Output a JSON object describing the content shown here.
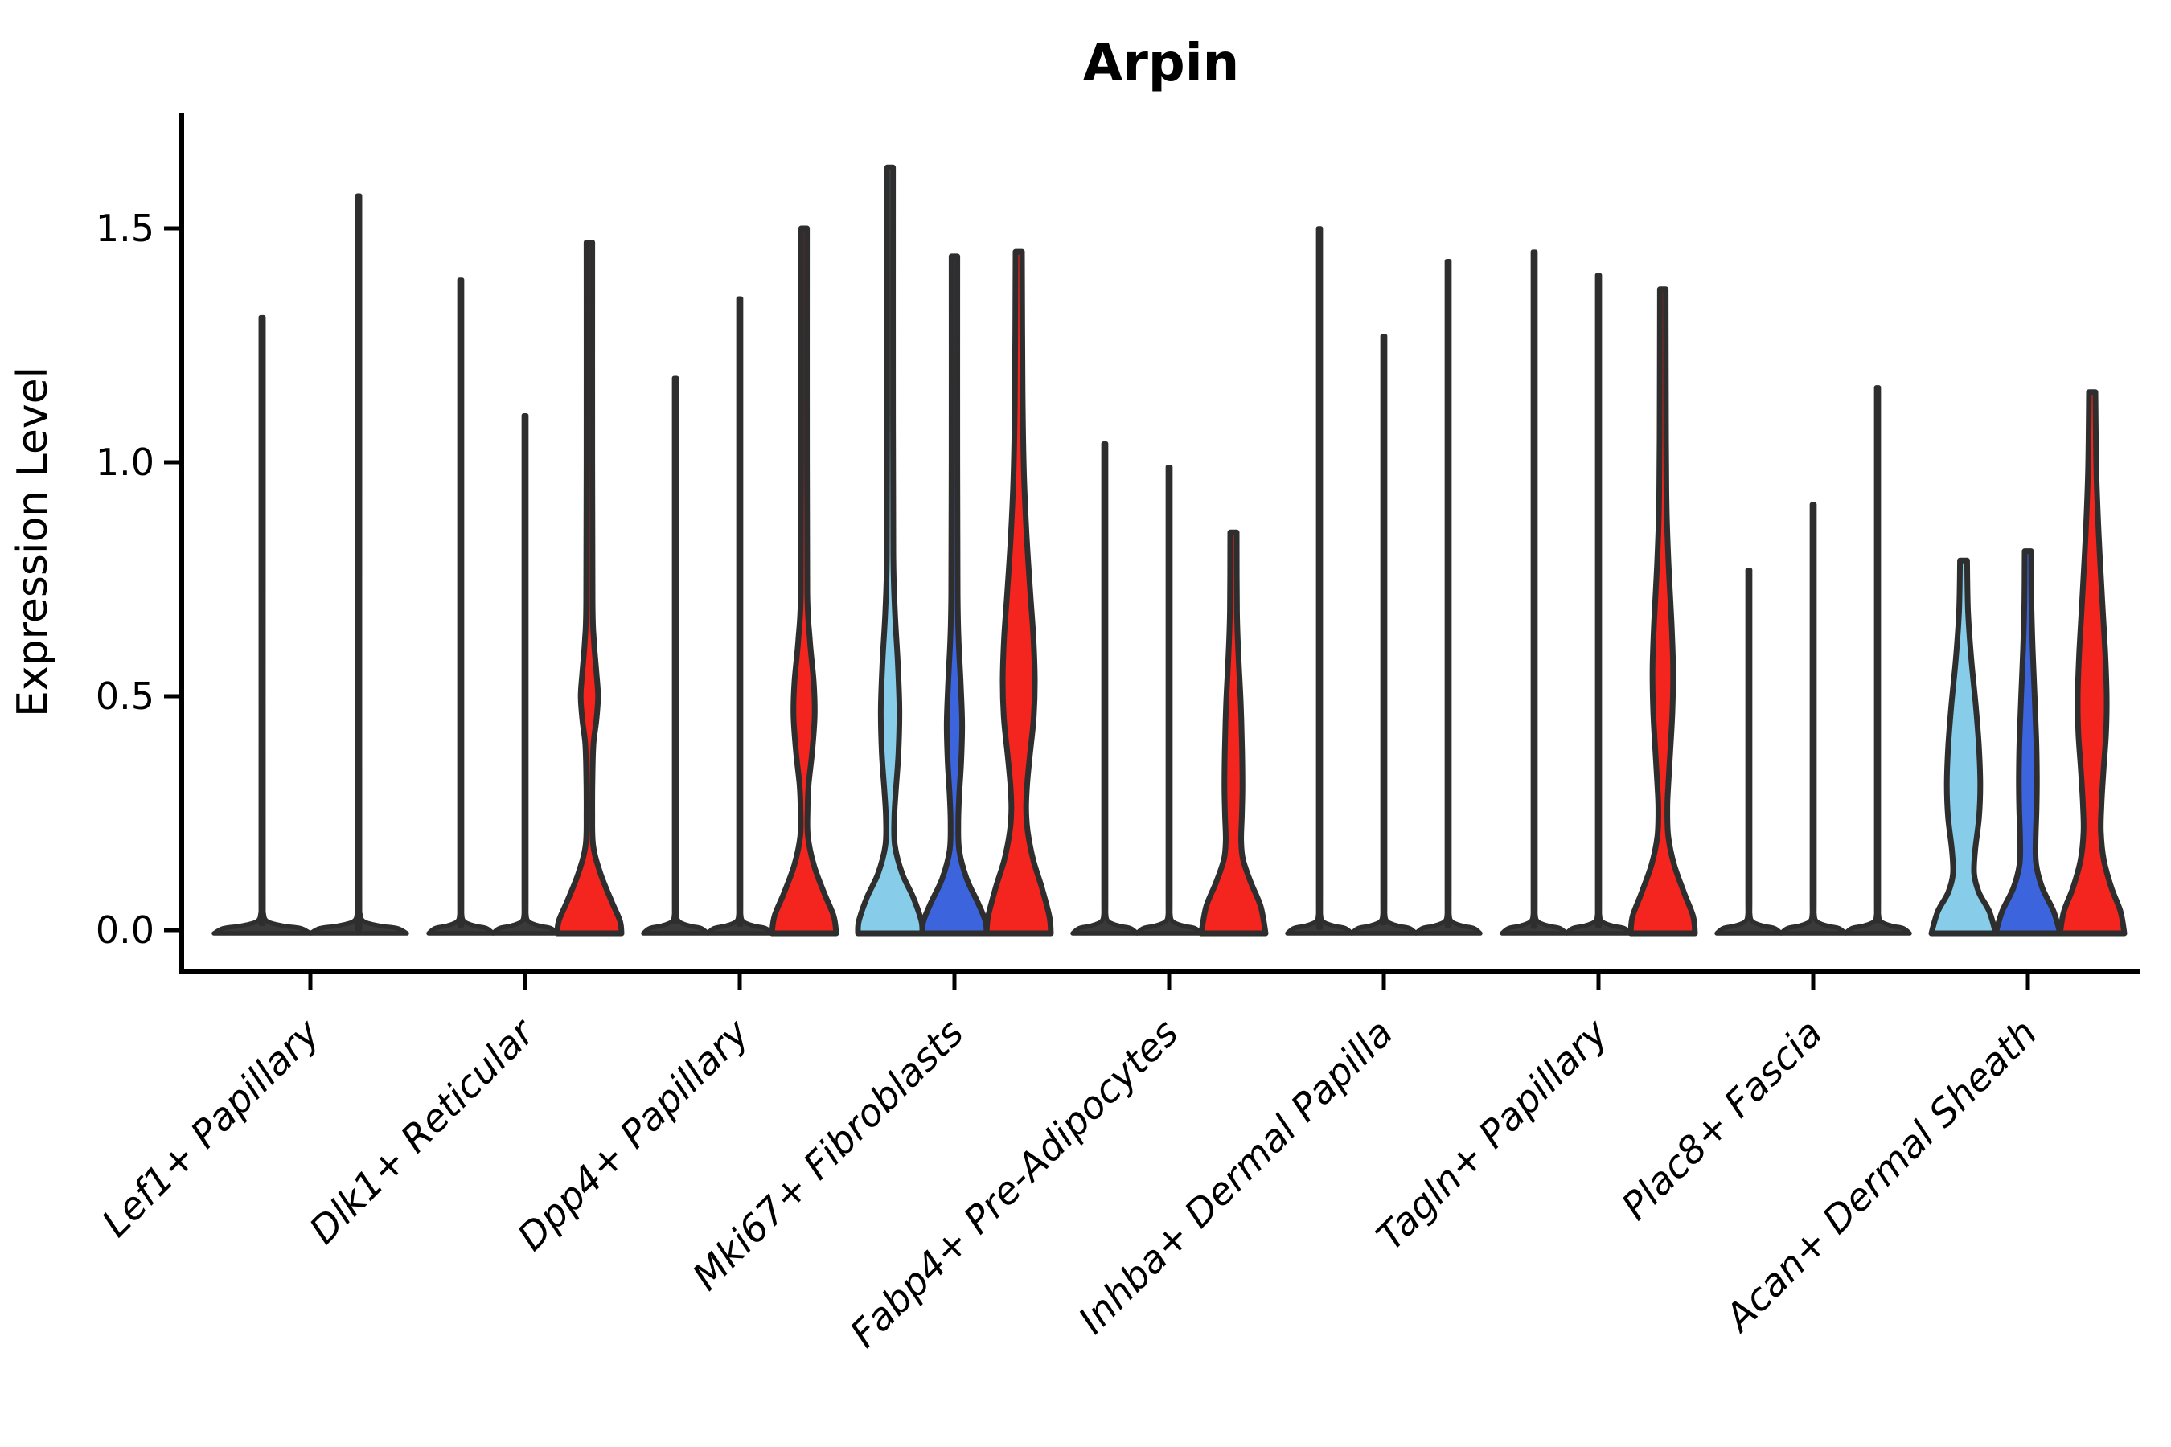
{
  "chart_data": {
    "type": "violin",
    "title": "Arpin",
    "ylabel": "Expression Level",
    "xlabel": "",
    "yticks": [
      "0.0",
      "0.5",
      "1.0",
      "1.5"
    ],
    "ytick_values": [
      0.0,
      0.5,
      1.0,
      1.5
    ],
    "ylim": [
      -0.08,
      1.74
    ],
    "grid": false,
    "legend": "none",
    "colors": {
      "split_lightblue": "#87CDEA",
      "split_darkblue": "#3C64DC",
      "split_red": "#F4251E",
      "line_violin_fill": "#3A3A3A",
      "outline": "#2E2E2E",
      "axis": "#000000"
    },
    "categories": [
      "Lef1+ Papillary",
      "Dlk1+ Reticular",
      "Dpp4+ Papillary",
      "Mki67+ Fibroblasts",
      "Fabp4+ Pre-Adipocytes",
      "Inhba+ Dermal Papilla",
      "Tagln+ Papillary",
      "Plac8+ Fascia",
      "Acan+ Dermal Sheath"
    ],
    "groups": [
      {
        "label": "Lef1+ Papillary",
        "violins": [
          {
            "kind": "line",
            "color": "line",
            "max": 1.31,
            "offset": -60,
            "base_halfwidth": 60
          },
          {
            "kind": "line",
            "color": "line",
            "max": 1.57,
            "offset": 60,
            "base_halfwidth": 60
          }
        ]
      },
      {
        "label": "Dlk1+ Reticular",
        "violins": [
          {
            "kind": "line",
            "color": "line",
            "max": 1.39,
            "offset": -80,
            "base_halfwidth": 40
          },
          {
            "kind": "line",
            "color": "line",
            "max": 1.1,
            "offset": 0,
            "base_halfwidth": 40
          },
          {
            "kind": "shaped",
            "color": "red",
            "max": 1.47,
            "offset": 80,
            "base_halfwidth": 40,
            "profile": [
              [
                1.47,
                0.09
              ],
              [
                1.0,
                0.09
              ],
              [
                0.7,
                0.1
              ],
              [
                0.62,
                0.14
              ],
              [
                0.55,
                0.22
              ],
              [
                0.5,
                0.27
              ],
              [
                0.45,
                0.22
              ],
              [
                0.4,
                0.13
              ],
              [
                0.34,
                0.1
              ],
              [
                0.25,
                0.09
              ],
              [
                0.18,
                0.12
              ],
              [
                0.12,
                0.35
              ],
              [
                0.06,
                0.7
              ],
              [
                0.02,
                0.95
              ],
              [
                0,
                1.0
              ]
            ]
          }
        ]
      },
      {
        "label": "Dpp4+ Papillary",
        "violins": [
          {
            "kind": "line",
            "color": "line",
            "max": 1.18,
            "offset": -80,
            "base_halfwidth": 40
          },
          {
            "kind": "line",
            "color": "line",
            "max": 1.35,
            "offset": 0,
            "base_halfwidth": 40
          },
          {
            "kind": "shaped",
            "color": "red",
            "max": 1.5,
            "offset": 80,
            "base_halfwidth": 40,
            "profile": [
              [
                1.5,
                0.09
              ],
              [
                1.0,
                0.09
              ],
              [
                0.72,
                0.1
              ],
              [
                0.62,
                0.18
              ],
              [
                0.53,
                0.3
              ],
              [
                0.46,
                0.33
              ],
              [
                0.38,
                0.25
              ],
              [
                0.31,
                0.14
              ],
              [
                0.26,
                0.11
              ],
              [
                0.2,
                0.12
              ],
              [
                0.14,
                0.3
              ],
              [
                0.08,
                0.62
              ],
              [
                0.03,
                0.92
              ],
              [
                0,
                1.0
              ]
            ]
          }
        ]
      },
      {
        "label": "Mki67+ Fibroblasts",
        "violins": [
          {
            "kind": "shaped",
            "color": "lightblue",
            "max": 1.63,
            "offset": -80,
            "base_halfwidth": 40,
            "profile": [
              [
                1.63,
                0.09
              ],
              [
                1.1,
                0.09
              ],
              [
                0.8,
                0.1
              ],
              [
                0.68,
                0.15
              ],
              [
                0.57,
                0.24
              ],
              [
                0.47,
                0.29
              ],
              [
                0.38,
                0.26
              ],
              [
                0.3,
                0.18
              ],
              [
                0.24,
                0.13
              ],
              [
                0.18,
                0.15
              ],
              [
                0.12,
                0.38
              ],
              [
                0.07,
                0.72
              ],
              [
                0.02,
                0.97
              ],
              [
                0,
                1.0
              ]
            ]
          },
          {
            "kind": "shaped",
            "color": "darkblue",
            "max": 1.44,
            "offset": 0,
            "base_halfwidth": 40,
            "profile": [
              [
                1.44,
                0.09
              ],
              [
                1.0,
                0.09
              ],
              [
                0.72,
                0.1
              ],
              [
                0.62,
                0.13
              ],
              [
                0.52,
                0.2
              ],
              [
                0.44,
                0.24
              ],
              [
                0.36,
                0.21
              ],
              [
                0.29,
                0.15
              ],
              [
                0.23,
                0.12
              ],
              [
                0.17,
                0.15
              ],
              [
                0.11,
                0.38
              ],
              [
                0.06,
                0.72
              ],
              [
                0.02,
                0.96
              ],
              [
                0,
                1.0
              ]
            ]
          },
          {
            "kind": "shaped",
            "color": "red",
            "max": 1.45,
            "offset": 80,
            "base_halfwidth": 40,
            "profile": [
              [
                1.45,
                0.1
              ],
              [
                1.15,
                0.12
              ],
              [
                0.98,
                0.16
              ],
              [
                0.85,
                0.24
              ],
              [
                0.72,
                0.36
              ],
              [
                0.62,
                0.46
              ],
              [
                0.53,
                0.5
              ],
              [
                0.45,
                0.46
              ],
              [
                0.37,
                0.34
              ],
              [
                0.31,
                0.26
              ],
              [
                0.26,
                0.23
              ],
              [
                0.21,
                0.28
              ],
              [
                0.15,
                0.45
              ],
              [
                0.09,
                0.72
              ],
              [
                0.03,
                0.95
              ],
              [
                0,
                1.0
              ]
            ]
          }
        ]
      },
      {
        "label": "Fabp4+ Pre-Adipocytes",
        "violins": [
          {
            "kind": "line",
            "color": "line",
            "max": 1.04,
            "offset": -80,
            "base_halfwidth": 40
          },
          {
            "kind": "line",
            "color": "line",
            "max": 0.99,
            "offset": 0,
            "base_halfwidth": 40
          },
          {
            "kind": "shaped",
            "color": "red",
            "max": 0.85,
            "offset": 80,
            "base_halfwidth": 40,
            "profile": [
              [
                0.85,
                0.1
              ],
              [
                0.68,
                0.11
              ],
              [
                0.58,
                0.16
              ],
              [
                0.48,
                0.23
              ],
              [
                0.38,
                0.27
              ],
              [
                0.3,
                0.28
              ],
              [
                0.24,
                0.26
              ],
              [
                0.19,
                0.24
              ],
              [
                0.15,
                0.3
              ],
              [
                0.1,
                0.55
              ],
              [
                0.05,
                0.85
              ],
              [
                0,
                1.0
              ]
            ]
          }
        ]
      },
      {
        "label": "Inhba+ Dermal Papilla",
        "violins": [
          {
            "kind": "line",
            "color": "line",
            "max": 1.5,
            "offset": -80,
            "base_halfwidth": 40
          },
          {
            "kind": "line",
            "color": "line",
            "max": 1.27,
            "offset": 0,
            "base_halfwidth": 40
          },
          {
            "kind": "line",
            "color": "line",
            "max": 1.43,
            "offset": 80,
            "base_halfwidth": 40
          }
        ]
      },
      {
        "label": "Tagln+ Papillary",
        "violins": [
          {
            "kind": "line",
            "color": "line",
            "max": 1.45,
            "offset": -80,
            "base_halfwidth": 40
          },
          {
            "kind": "line",
            "color": "line",
            "max": 1.4,
            "offset": 0,
            "base_halfwidth": 40
          },
          {
            "kind": "shaped",
            "color": "red",
            "max": 1.37,
            "offset": 80,
            "base_halfwidth": 40,
            "profile": [
              [
                1.37,
                0.09
              ],
              [
                1.05,
                0.1
              ],
              [
                0.9,
                0.12
              ],
              [
                0.78,
                0.18
              ],
              [
                0.66,
                0.27
              ],
              [
                0.56,
                0.32
              ],
              [
                0.47,
                0.3
              ],
              [
                0.38,
                0.23
              ],
              [
                0.31,
                0.17
              ],
              [
                0.26,
                0.14
              ],
              [
                0.2,
                0.17
              ],
              [
                0.14,
                0.35
              ],
              [
                0.08,
                0.66
              ],
              [
                0.03,
                0.94
              ],
              [
                0,
                1.0
              ]
            ]
          }
        ]
      },
      {
        "label": "Plac8+ Fascia",
        "violins": [
          {
            "kind": "line",
            "color": "line",
            "max": 0.77,
            "offset": -80,
            "base_halfwidth": 40
          },
          {
            "kind": "line",
            "color": "line",
            "max": 0.91,
            "offset": 0,
            "base_halfwidth": 40
          },
          {
            "kind": "line",
            "color": "line",
            "max": 1.16,
            "offset": 80,
            "base_halfwidth": 40
          }
        ]
      },
      {
        "label": "Acan+ Dermal Sheath",
        "violins": [
          {
            "kind": "shaped",
            "color": "lightblue",
            "max": 0.79,
            "offset": -80,
            "base_halfwidth": 40,
            "profile": [
              [
                0.79,
                0.11
              ],
              [
                0.68,
                0.14
              ],
              [
                0.58,
                0.24
              ],
              [
                0.48,
                0.38
              ],
              [
                0.39,
                0.48
              ],
              [
                0.31,
                0.52
              ],
              [
                0.24,
                0.48
              ],
              [
                0.17,
                0.36
              ],
              [
                0.12,
                0.33
              ],
              [
                0.08,
                0.48
              ],
              [
                0.04,
                0.8
              ],
              [
                0,
                1.0
              ]
            ]
          },
          {
            "kind": "shaped",
            "color": "darkblue",
            "max": 0.81,
            "offset": 0,
            "base_halfwidth": 40,
            "profile": [
              [
                0.81,
                0.1
              ],
              [
                0.7,
                0.11
              ],
              [
                0.6,
                0.15
              ],
              [
                0.5,
                0.21
              ],
              [
                0.41,
                0.26
              ],
              [
                0.33,
                0.28
              ],
              [
                0.26,
                0.27
              ],
              [
                0.19,
                0.24
              ],
              [
                0.14,
                0.26
              ],
              [
                0.09,
                0.45
              ],
              [
                0.04,
                0.8
              ],
              [
                0,
                1.0
              ]
            ]
          },
          {
            "kind": "shaped",
            "color": "red",
            "max": 1.15,
            "offset": 80,
            "base_halfwidth": 40,
            "profile": [
              [
                1.15,
                0.1
              ],
              [
                0.98,
                0.13
              ],
              [
                0.85,
                0.2
              ],
              [
                0.72,
                0.3
              ],
              [
                0.6,
                0.4
              ],
              [
                0.5,
                0.45
              ],
              [
                0.42,
                0.43
              ],
              [
                0.34,
                0.35
              ],
              [
                0.27,
                0.29
              ],
              [
                0.21,
                0.27
              ],
              [
                0.15,
                0.36
              ],
              [
                0.09,
                0.6
              ],
              [
                0.04,
                0.88
              ],
              [
                0,
                1.0
              ]
            ]
          }
        ]
      }
    ]
  }
}
